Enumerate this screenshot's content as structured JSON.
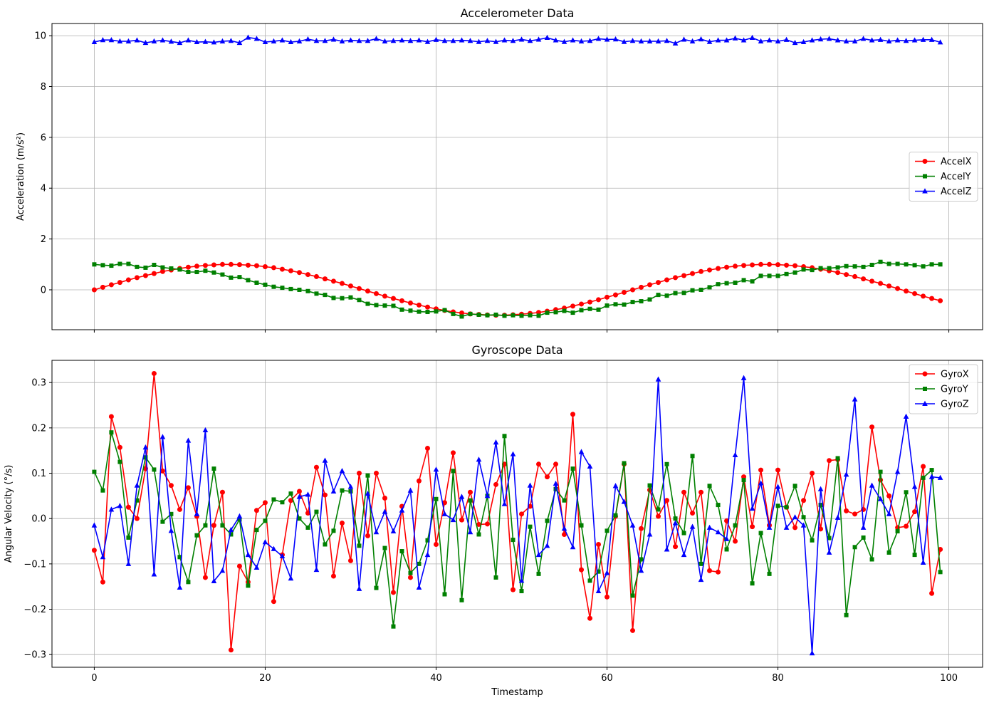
{
  "chart_data": [
    {
      "type": "line",
      "title": "Accelerometer Data",
      "ylabel": "Acceleration (m/s²)",
      "x": [
        0,
        1,
        2,
        3,
        4,
        5,
        6,
        7,
        8,
        9,
        10,
        11,
        12,
        13,
        14,
        15,
        16,
        17,
        18,
        19,
        20,
        21,
        22,
        23,
        24,
        25,
        26,
        27,
        28,
        29,
        30,
        31,
        32,
        33,
        34,
        35,
        36,
        37,
        38,
        39,
        40,
        41,
        42,
        43,
        44,
        45,
        46,
        47,
        48,
        49,
        50,
        51,
        52,
        53,
        54,
        55,
        56,
        57,
        58,
        59,
        60,
        61,
        62,
        63,
        64,
        65,
        66,
        67,
        68,
        69,
        70,
        71,
        72,
        73,
        74,
        75,
        76,
        77,
        78,
        79,
        80,
        81,
        82,
        83,
        84,
        85,
        86,
        87,
        88,
        89,
        90,
        91,
        92,
        93,
        94,
        95,
        96,
        97,
        98,
        99
      ],
      "xlim": [
        -4.95,
        103.95
      ],
      "xticks": [
        0,
        20,
        40,
        60,
        80,
        100
      ],
      "ylim": [
        -1.57,
        10.48
      ],
      "yticks": [
        0,
        2,
        4,
        6,
        8,
        10
      ],
      "grid": true,
      "legend": "center right",
      "series": [
        {
          "name": "AccelX",
          "color": "#ff0000",
          "marker": "circle",
          "values": [
            0,
            0.1,
            0.2,
            0.29,
            0.39,
            0.48,
            0.56,
            0.64,
            0.72,
            0.78,
            0.84,
            0.89,
            0.93,
            0.96,
            0.98,
            1.0,
            1.0,
            0.99,
            0.97,
            0.95,
            0.91,
            0.87,
            0.81,
            0.75,
            0.68,
            0.6,
            0.52,
            0.43,
            0.34,
            0.25,
            0.15,
            0.05,
            -0.05,
            -0.15,
            -0.25,
            -0.34,
            -0.43,
            -0.52,
            -0.6,
            -0.68,
            -0.75,
            -0.81,
            -0.87,
            -0.91,
            -0.95,
            -0.97,
            -0.99,
            -1.0,
            -1.0,
            -0.98,
            -0.96,
            -0.93,
            -0.89,
            -0.84,
            -0.78,
            -0.72,
            -0.64,
            -0.56,
            -0.48,
            -0.39,
            -0.29,
            -0.2,
            -0.1,
            0,
            0.1,
            0.2,
            0.29,
            0.39,
            0.48,
            0.56,
            0.64,
            0.72,
            0.78,
            0.84,
            0.89,
            0.93,
            0.96,
            0.98,
            1.0,
            1.0,
            0.99,
            0.97,
            0.95,
            0.91,
            0.87,
            0.81,
            0.75,
            0.68,
            0.6,
            0.52,
            0.43,
            0.34,
            0.25,
            0.15,
            0.05,
            -0.05,
            -0.15,
            -0.25,
            -0.34,
            -0.43
          ]
        },
        {
          "name": "AccelY",
          "color": "#008000",
          "marker": "square",
          "values": [
            1.0,
            0.97,
            0.95,
            1.02,
            1.02,
            0.9,
            0.87,
            0.98,
            0.88,
            0.84,
            0.8,
            0.7,
            0.7,
            0.75,
            0.68,
            0.6,
            0.48,
            0.5,
            0.38,
            0.28,
            0.2,
            0.12,
            0.08,
            0.03,
            0,
            -0.05,
            -0.15,
            -0.2,
            -0.32,
            -0.33,
            -0.3,
            -0.4,
            -0.55,
            -0.6,
            -0.62,
            -0.63,
            -0.78,
            -0.82,
            -0.86,
            -0.87,
            -0.85,
            -0.8,
            -0.95,
            -1.05,
            -0.95,
            -0.98,
            -1.0,
            -0.98,
            -1.02,
            -1.0,
            -1.02,
            -1.0,
            -1.02,
            -0.9,
            -0.88,
            -0.83,
            -0.9,
            -0.8,
            -0.75,
            -0.78,
            -0.62,
            -0.57,
            -0.58,
            -0.48,
            -0.45,
            -0.38,
            -0.2,
            -0.23,
            -0.13,
            -0.12,
            -0.02,
            0,
            0.1,
            0.22,
            0.26,
            0.28,
            0.38,
            0.33,
            0.55,
            0.55,
            0.55,
            0.62,
            0.68,
            0.8,
            0.78,
            0.85,
            0.85,
            0.88,
            0.93,
            0.92,
            0.9,
            0.98,
            1.1,
            1.02,
            1.02,
            1.0,
            0.97,
            0.92,
            1.0,
            1.0
          ]
        },
        {
          "name": "AccelZ",
          "color": "#0000ff",
          "marker": "triangle",
          "values": [
            9.75,
            9.83,
            9.83,
            9.78,
            9.78,
            9.82,
            9.72,
            9.78,
            9.82,
            9.77,
            9.72,
            9.82,
            9.75,
            9.76,
            9.74,
            9.78,
            9.8,
            9.72,
            9.93,
            9.88,
            9.75,
            9.78,
            9.82,
            9.75,
            9.78,
            9.86,
            9.8,
            9.8,
            9.85,
            9.78,
            9.82,
            9.8,
            9.8,
            9.88,
            9.78,
            9.8,
            9.82,
            9.8,
            9.82,
            9.76,
            9.84,
            9.8,
            9.8,
            9.82,
            9.8,
            9.76,
            9.8,
            9.76,
            9.82,
            9.8,
            9.85,
            9.8,
            9.85,
            9.92,
            9.82,
            9.76,
            9.82,
            9.78,
            9.8,
            9.88,
            9.85,
            9.86,
            9.76,
            9.8,
            9.78,
            9.78,
            9.78,
            9.8,
            9.7,
            9.85,
            9.78,
            9.86,
            9.76,
            9.82,
            9.82,
            9.9,
            9.82,
            9.92,
            9.78,
            9.82,
            9.78,
            9.84,
            9.72,
            9.75,
            9.82,
            9.86,
            9.88,
            9.82,
            9.78,
            9.78,
            9.88,
            9.82,
            9.84,
            9.78,
            9.82,
            9.8,
            9.82,
            9.84,
            9.84,
            9.74
          ]
        }
      ]
    },
    {
      "type": "line",
      "title": "Gyroscope Data",
      "ylabel": "Angular Velocity (°/s)",
      "xlabel": "Timestamp",
      "x": [
        0,
        1,
        2,
        3,
        4,
        5,
        6,
        7,
        8,
        9,
        10,
        11,
        12,
        13,
        14,
        15,
        16,
        17,
        18,
        19,
        20,
        21,
        22,
        23,
        24,
        25,
        26,
        27,
        28,
        29,
        30,
        31,
        32,
        33,
        34,
        35,
        36,
        37,
        38,
        39,
        40,
        41,
        42,
        43,
        44,
        45,
        46,
        47,
        48,
        49,
        50,
        51,
        52,
        53,
        54,
        55,
        56,
        57,
        58,
        59,
        60,
        61,
        62,
        63,
        64,
        65,
        66,
        67,
        68,
        69,
        70,
        71,
        72,
        73,
        74,
        75,
        76,
        77,
        78,
        79,
        80,
        81,
        82,
        83,
        84,
        85,
        86,
        87,
        88,
        89,
        90,
        91,
        92,
        93,
        94,
        95,
        96,
        97,
        98,
        99
      ],
      "xlim": [
        -4.95,
        103.95
      ],
      "xticks": [
        0,
        20,
        40,
        60,
        80,
        100
      ],
      "ylim": [
        -0.328,
        0.349
      ],
      "yticks": [
        {
          "value": -0.3,
          "label": "−0.3"
        },
        {
          "value": -0.2,
          "label": "−0.2"
        },
        {
          "value": -0.1,
          "label": "−0.1"
        },
        {
          "value": 0,
          "label": "0.0"
        },
        0.1,
        0.2,
        0.3
      ],
      "grid": true,
      "legend": "upper right",
      "series": [
        {
          "name": "GyroX",
          "color": "#ff0000",
          "marker": "circle",
          "values": [
            -0.07,
            -0.14,
            0.225,
            0.157,
            0.025,
            0,
            0.11,
            0.32,
            0.105,
            0.073,
            0.02,
            0.068,
            0.005,
            -0.13,
            -0.015,
            0.058,
            -0.29,
            -0.105,
            -0.14,
            0.018,
            0.035,
            -0.183,
            -0.08,
            0.04,
            0.06,
            0.012,
            0.113,
            0.052,
            -0.127,
            -0.01,
            -0.093,
            0.1,
            -0.038,
            0.1,
            0.045,
            -0.163,
            0.027,
            -0.13,
            0.083,
            0.155,
            -0.057,
            0.035,
            0.145,
            -0.003,
            0.058,
            -0.013,
            -0.012,
            0.075,
            0.12,
            -0.157,
            0.01,
            0.027,
            0.12,
            0.092,
            0.12,
            -0.035,
            0.23,
            -0.113,
            -0.22,
            -0.057,
            -0.173,
            0.005,
            0.12,
            -0.247,
            -0.022,
            0.063,
            0.005,
            0.04,
            -0.062,
            0.058,
            0.012,
            0.058,
            -0.115,
            -0.118,
            -0.005,
            -0.05,
            0.092,
            -0.018,
            0.107,
            -0.015,
            0.107,
            0.025,
            -0.02,
            0.04,
            0.1,
            -0.023,
            0.128,
            0.13,
            0.017,
            0.01,
            0.02,
            0.202,
            0.085,
            0.05,
            -0.02,
            -0.017,
            0.015,
            0.115,
            -0.165,
            -0.068
          ]
        },
        {
          "name": "GyroY",
          "color": "#008000",
          "marker": "square",
          "values": [
            0.103,
            0.062,
            0.19,
            0.125,
            -0.042,
            0.04,
            0.135,
            0.108,
            -0.007,
            0.01,
            -0.085,
            -0.14,
            -0.037,
            -0.015,
            0.11,
            -0.015,
            -0.035,
            -0.002,
            -0.148,
            -0.025,
            -0.005,
            0.042,
            0.036,
            0.055,
            0,
            -0.02,
            0.015,
            -0.057,
            -0.027,
            0.062,
            0.06,
            -0.06,
            0.095,
            -0.153,
            -0.065,
            -0.238,
            -0.072,
            -0.12,
            -0.1,
            -0.048,
            0.043,
            -0.167,
            0.105,
            -0.18,
            0.04,
            -0.035,
            0.05,
            -0.13,
            0.182,
            -0.047,
            -0.16,
            -0.018,
            -0.122,
            -0.005,
            0.065,
            0.04,
            0.11,
            -0.015,
            -0.137,
            -0.117,
            -0.027,
            0.007,
            0.122,
            -0.17,
            -0.09,
            0.073,
            0.02,
            0.12,
            0,
            -0.032,
            0.138,
            -0.1,
            0.072,
            0.03,
            -0.068,
            -0.015,
            0.085,
            -0.143,
            -0.032,
            -0.122,
            0.028,
            0.025,
            0.072,
            0.003,
            -0.048,
            0.03,
            -0.043,
            0.133,
            -0.213,
            -0.063,
            -0.042,
            -0.09,
            0.103,
            -0.075,
            -0.028,
            0.058,
            -0.08,
            0.09,
            0.107,
            -0.118
          ]
        },
        {
          "name": "GyroZ",
          "color": "#0000ff",
          "marker": "triangle",
          "values": [
            -0.015,
            -0.085,
            0.02,
            0.028,
            -0.1,
            0.073,
            0.157,
            -0.123,
            0.18,
            -0.027,
            -0.152,
            0.172,
            0.01,
            0.195,
            -0.138,
            -0.115,
            -0.025,
            0.005,
            -0.08,
            -0.108,
            -0.052,
            -0.067,
            -0.083,
            -0.132,
            0.048,
            0.053,
            -0.113,
            0.128,
            0.06,
            0.105,
            0.07,
            -0.155,
            0.055,
            -0.03,
            0.015,
            -0.028,
            0.018,
            0.062,
            -0.152,
            -0.08,
            0.108,
            0.01,
            -0.003,
            0.048,
            -0.03,
            0.13,
            0.05,
            0.168,
            0.032,
            0.142,
            -0.137,
            0.073,
            -0.08,
            -0.06,
            0.077,
            -0.022,
            -0.063,
            0.147,
            0.115,
            -0.16,
            -0.12,
            0.072,
            0.037,
            -0.015,
            -0.115,
            -0.035,
            0.307,
            -0.068,
            -0.01,
            -0.08,
            -0.018,
            -0.135,
            -0.02,
            -0.03,
            -0.045,
            0.14,
            0.31,
            0.022,
            0.078,
            -0.02,
            0.07,
            -0.02,
            0.003,
            -0.015,
            -0.297,
            0.065,
            -0.075,
            0.002,
            0.097,
            0.263,
            -0.02,
            0.073,
            0.043,
            0.01,
            0.103,
            0.225,
            0.07,
            -0.097,
            0.092,
            0.09
          ]
        }
      ]
    }
  ]
}
